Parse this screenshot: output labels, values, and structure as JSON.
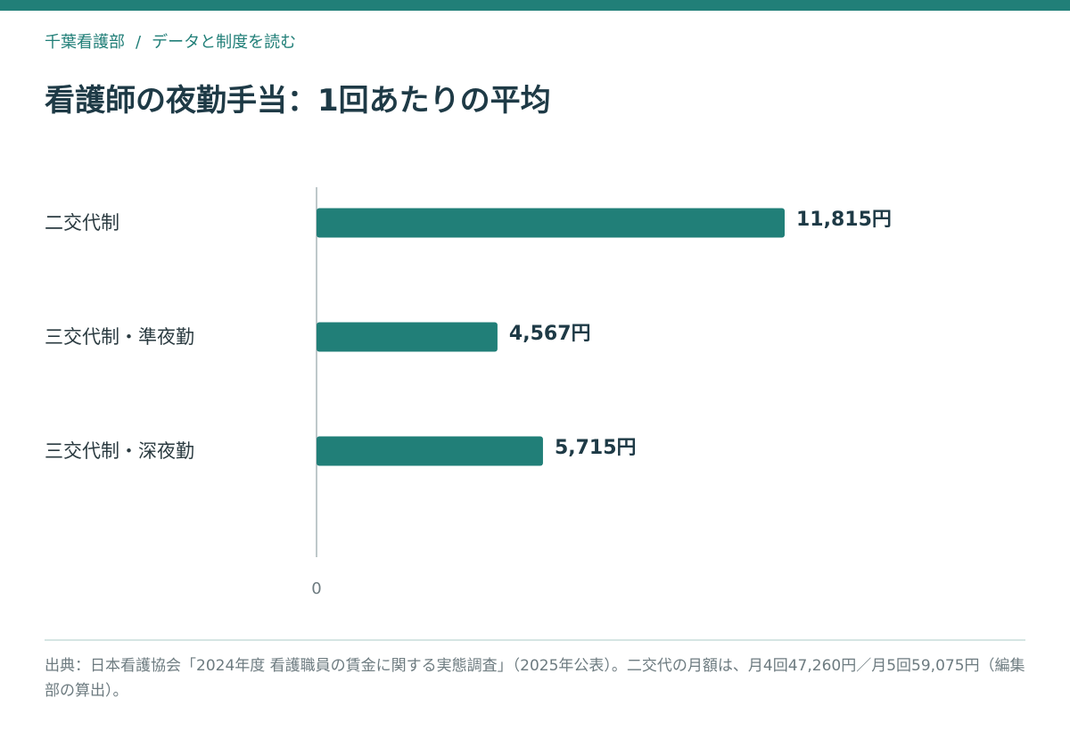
{
  "breadcrumb": {
    "site": "千葉看護部",
    "separator": "/",
    "section": "データと制度を読む"
  },
  "page_title": "看護師の夜勤手当：1回あたりの平均",
  "colors": {
    "accent": "#217f78",
    "title": "#1e3a46",
    "label": "#2b3b41",
    "axis": "#a9b6b8",
    "muted": "#6d7b80"
  },
  "chart_data": {
    "type": "bar",
    "orientation": "horizontal",
    "categories": [
      "二交代制",
      "三交代制・準夜勤",
      "三交代制・深夜勤"
    ],
    "values": [
      11815,
      4567,
      5715
    ],
    "value_labels": [
      "11,815円",
      "4,567円",
      "5,715円"
    ],
    "xlim": [
      0,
      12000
    ],
    "x_tick_labels": [
      "0"
    ],
    "grid": false
  },
  "source_note": "出典：日本看護協会「2024年度 看護職員の賃金に関する実態調査」（2025年公表）。二交代の月額は、月4回47,260円／月5回59,075円（編集部の算出）。"
}
